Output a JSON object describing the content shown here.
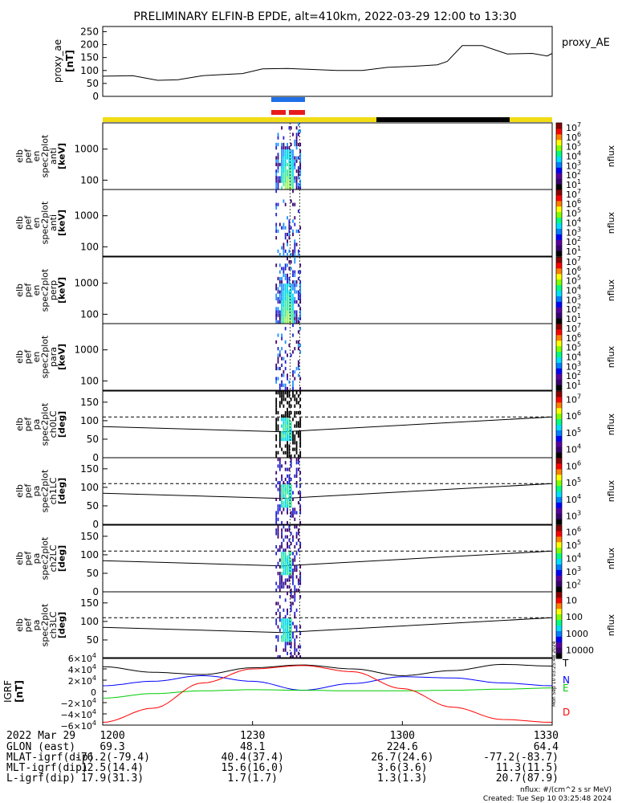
{
  "title": "PRELIMINARY ELFIN-B EPDE, alt=410km, 2022-03-29 12:00 to 13:30",
  "colors": {
    "ae_line": "#000000",
    "ticks_blue": "#1f6fe8",
    "ticks_red": "#e81b1b",
    "bar_yellow": "#f2dc14",
    "bar_black": "#000000",
    "igrf_N": "#0000ff",
    "igrf_E": "#00cc00",
    "igrf_D": "#ff0000",
    "igrf_T": "#000000"
  },
  "panels": [
    {
      "label_lines": [
        "elb",
        "pef",
        "en",
        "spec2plot",
        "anti",
        "[keV]"
      ],
      "ytick_labels": [
        "1000",
        "100"
      ],
      "cb_label": "nflux",
      "cb_ticks": [
        "10",
        "10",
        "10",
        "10",
        "10",
        "10",
        "10"
      ],
      "cb_exps": [
        "1",
        "2",
        "3",
        "4",
        "5",
        "6",
        "7"
      ]
    },
    {
      "label_lines": [
        "elb",
        "pef",
        "en",
        "spec2plot",
        "anti",
        "[keV]"
      ],
      "ytick_labels": [
        "1000",
        "100"
      ],
      "cb_label": "nflux",
      "cb_ticks": [
        "10",
        "10",
        "10",
        "10",
        "10",
        "10",
        "10"
      ],
      "cb_exps": [
        "1",
        "2",
        "3",
        "4",
        "5",
        "6",
        "7"
      ]
    },
    {
      "label_lines": [
        "elb",
        "pef",
        "en",
        "spec2plot",
        "perp",
        "[keV]"
      ],
      "ytick_labels": [
        "1000",
        "100"
      ],
      "cb_label": "nflux",
      "cb_ticks": [
        "10",
        "10",
        "10",
        "10",
        "10",
        "10",
        "10"
      ],
      "cb_exps": [
        "1",
        "2",
        "3",
        "4",
        "5",
        "6",
        "7"
      ]
    },
    {
      "label_lines": [
        "elb",
        "pef",
        "en",
        "spec2plot",
        "para",
        "[keV]"
      ],
      "ytick_labels": [
        "1000",
        "100"
      ],
      "cb_label": "nflux",
      "cb_ticks": [
        "10",
        "10",
        "10",
        "10",
        "10",
        "10",
        "10"
      ],
      "cb_exps": [
        "1",
        "2",
        "3",
        "4",
        "5",
        "6",
        "7"
      ]
    },
    {
      "label_lines": [
        "elb",
        "pef",
        "pa",
        "spec2plot",
        "ch0LC",
        "[deg]"
      ],
      "ytick_labels": [
        "150",
        "100",
        "50",
        "0"
      ],
      "cb_label": "nflux",
      "cb_ticks": [
        "10",
        "10",
        "10",
        "10"
      ],
      "cb_exps": [
        "4",
        "5",
        "6",
        "7"
      ]
    },
    {
      "label_lines": [
        "elb",
        "pef",
        "pa",
        "spec2plot",
        "ch1LC",
        "[deg]"
      ],
      "ytick_labels": [
        "150",
        "100",
        "50",
        "0"
      ],
      "cb_label": "nflux",
      "cb_ticks": [
        "10",
        "10",
        "10",
        "10"
      ],
      "cb_exps": [
        "3",
        "4",
        "5",
        "6"
      ]
    },
    {
      "label_lines": [
        "elb",
        "pef",
        "pa",
        "spec2plot",
        "ch2LC",
        "[deg]"
      ],
      "ytick_labels": [
        "150",
        "100",
        "50",
        "0"
      ],
      "cb_label": "nflux",
      "cb_ticks": [
        "10",
        "10",
        "10",
        "10",
        "10"
      ],
      "cb_exps": [
        "2",
        "3",
        "4",
        "5",
        "6"
      ]
    },
    {
      "label_lines": [
        "elb",
        "pef",
        "pa",
        "spec2plot",
        "ch3LC",
        "[deg]"
      ],
      "ytick_labels": [
        "150",
        "100",
        "50"
      ],
      "cb_label": "nflux",
      "cb_ticks": [
        "10000",
        "1000",
        "100",
        "10"
      ],
      "cb_exps": [
        "",
        "",
        "",
        ""
      ]
    }
  ],
  "igrf": {
    "ylabel": "IGRF [nT]",
    "ytick_labels": [
      "6×10",
      "4×10",
      "2×10",
      "0",
      "−2×10",
      "−4×10",
      "−6×10"
    ],
    "ytick_exps": [
      "4",
      "4",
      "4",
      "",
      "4",
      "4",
      "4"
    ],
    "legend": [
      "T",
      "N",
      "E",
      "D"
    ],
    "stamp": "Mon Sep 10 03:25:48 2024"
  },
  "xaxis": {
    "tick_labels": [
      "1200",
      "1230",
      "1300",
      "1330"
    ]
  },
  "annotation_rows": [
    {
      "label": "2022 Mar 29",
      "values": [
        "1200",
        "1230",
        "1300",
        "1330"
      ]
    },
    {
      "label": "GLON (east)",
      "values": [
        "69.3",
        "48.1",
        "224.6",
        "64.4"
      ]
    },
    {
      "label": "MLAT-igrf(dip)",
      "values": [
        "-76.2(-79.4)",
        "40.4(37.4)",
        "26.7(24.6)",
        "-77.2(-83.7)"
      ]
    },
    {
      "label": "MLT-igrf(dip)",
      "values": [
        "12.5(14.4)",
        "15.6(16.0)",
        "3.6(3.6)",
        "11.3(11.5)"
      ]
    },
    {
      "label": "L-igrf(dip)",
      "values": [
        "17.9(31.3)",
        "1.7(1.7)",
        "1.3(1.3)",
        "20.7(87.9)"
      ]
    }
  ],
  "footer": {
    "units": "nflux: #/(cm^2 s sr MeV)",
    "created": "Created: Tue Sep 10 03:25:48 2024"
  },
  "chart_data": {
    "type": "line",
    "title": "PRELIMINARY ELFIN-B EPDE, alt=410km, 2022-03-29 12:00 to 13:30",
    "x_unit": "minutes after 12:00 UT",
    "xlim": [
      0,
      90
    ],
    "ae": {
      "ylabel": "proxy_ae [nT]",
      "legend": "proxy_AE",
      "ylim": [
        0,
        270
      ],
      "yticks": [
        "250",
        "200",
        "150",
        "100",
        "50",
        "0"
      ],
      "x": [
        0,
        6,
        11,
        15,
        20,
        24,
        28,
        32,
        37,
        42,
        47,
        52,
        57,
        62,
        67,
        69,
        72,
        76,
        81,
        86,
        89,
        90
      ],
      "y": [
        78,
        80,
        62,
        64,
        80,
        84,
        88,
        106,
        108,
        104,
        100,
        100,
        112,
        116,
        122,
        135,
        196,
        196,
        164,
        166,
        156,
        166
      ]
    },
    "igrf": {
      "ylim": [
        -60000,
        60000
      ],
      "series": [
        {
          "name": "T",
          "x": [
            0,
            10,
            20,
            30,
            40,
            50,
            60,
            70,
            80,
            90
          ],
          "y": [
            44000,
            34000,
            30000,
            42000,
            47000,
            40000,
            28000,
            37000,
            48000,
            45000
          ]
        },
        {
          "name": "N",
          "x": [
            0,
            10,
            20,
            30,
            40,
            50,
            60,
            70,
            80,
            90
          ],
          "y": [
            10000,
            18000,
            28000,
            18000,
            2000,
            14000,
            26000,
            24000,
            15000,
            10000
          ]
        },
        {
          "name": "E",
          "x": [
            0,
            10,
            20,
            30,
            40,
            50,
            60,
            70,
            80,
            90
          ],
          "y": [
            -12000,
            -4000,
            1000,
            3000,
            2000,
            1000,
            1000,
            2000,
            4000,
            6000
          ]
        },
        {
          "name": "D",
          "x": [
            0,
            10,
            20,
            30,
            40,
            50,
            60,
            70,
            80,
            90
          ],
          "y": [
            -55000,
            -30000,
            15000,
            40000,
            46000,
            35000,
            5000,
            -28000,
            -50000,
            -55000
          ]
        }
      ]
    },
    "pa_panels": {
      "ylim": [
        0,
        180
      ],
      "solid_line": {
        "x": [
          0,
          36,
          90
        ],
        "y": [
          84,
          70,
          110
        ]
      },
      "dashed_line": 110
    },
    "energy_panels": {
      "ylim_keV": [
        50,
        7000
      ],
      "log": true
    },
    "science_zone_minutes": [
      34.6,
      39.8
    ],
    "orbit_bar": {
      "yellow": [
        [
          0,
          54
        ],
        [
          80,
          90
        ]
      ],
      "black": [
        [
          54,
          80
        ]
      ]
    }
  }
}
